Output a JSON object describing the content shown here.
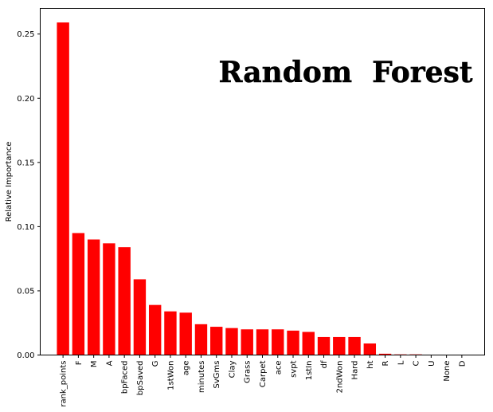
{
  "chart_data": {
    "type": "bar",
    "title": "Random  Forest",
    "xlabel": "",
    "ylabel": "Relative Importance",
    "ylim": [
      0,
      0.27
    ],
    "yticks": [
      "0.00",
      "0.05",
      "0.10",
      "0.15",
      "0.20",
      "0.25"
    ],
    "bar_color": "#ff0000",
    "grid": false,
    "categories": [
      "rank_points",
      "F",
      "M",
      "A",
      "bpFaced",
      "bpSaved",
      "G",
      "1stWon",
      "age",
      "minutes",
      "SvGms",
      "Clay",
      "Grass",
      "Carpet",
      "ace",
      "svpt",
      "1stIn",
      "df",
      "2ndWon",
      "Hard",
      "ht",
      "R",
      "L",
      "C",
      "U",
      "None",
      "D"
    ],
    "values": [
      0.259,
      0.095,
      0.09,
      0.087,
      0.084,
      0.059,
      0.039,
      0.034,
      0.033,
      0.024,
      0.022,
      0.021,
      0.02,
      0.02,
      0.02,
      0.019,
      0.018,
      0.014,
      0.014,
      0.014,
      0.009,
      0.001,
      0.0005,
      0.0005,
      0.0,
      0.0,
      0.0
    ]
  }
}
